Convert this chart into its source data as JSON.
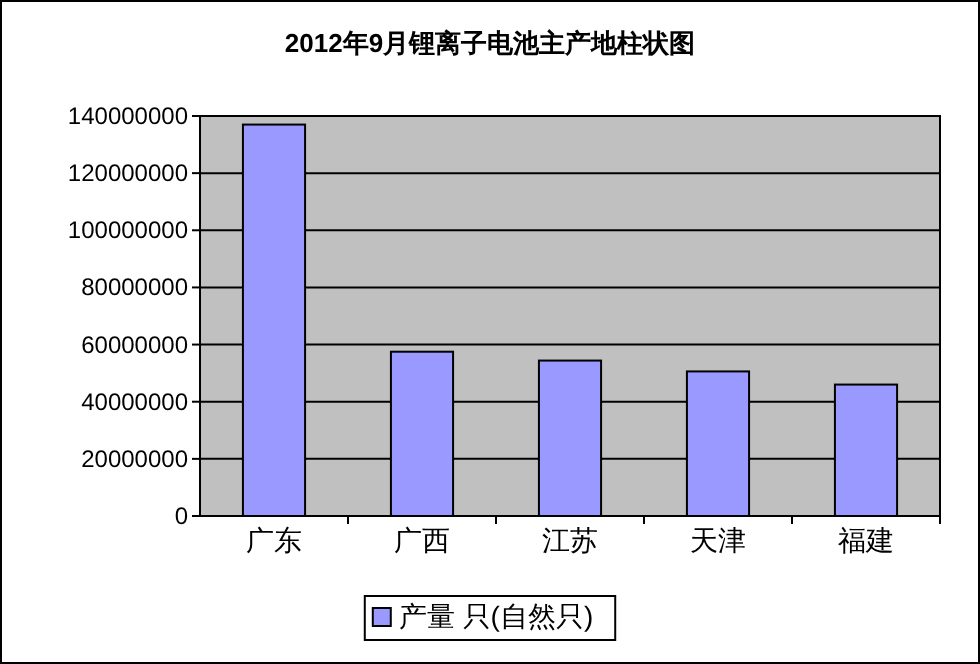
{
  "chart_data": {
    "type": "bar",
    "title": "2012年9月锂离子电池主产地柱状图",
    "categories": [
      "广东",
      "广西",
      "江苏",
      "天津",
      "福建"
    ],
    "series": [
      {
        "name": "产量 只(自然只)",
        "color": "#9999ff",
        "values": [
          137000000,
          57500000,
          54400000,
          50600000,
          46000000
        ]
      }
    ],
    "ylim": [
      0,
      140000000
    ],
    "yticks": [
      0,
      20000000,
      40000000,
      60000000,
      80000000,
      100000000,
      120000000,
      140000000
    ],
    "grid": "y",
    "legend": "bottom"
  }
}
